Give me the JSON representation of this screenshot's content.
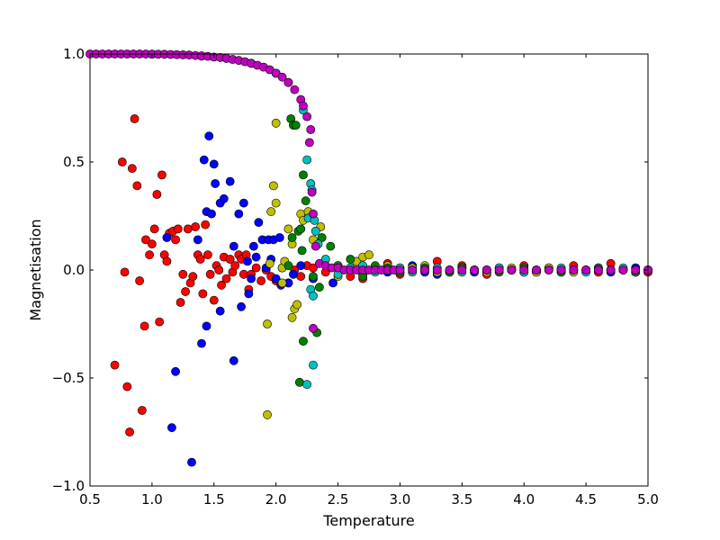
{
  "chart_data": {
    "type": "scatter",
    "title": "",
    "xlabel": "Temperature",
    "ylabel": "Magnetisation",
    "xlim": [
      0.5,
      5.0
    ],
    "ylim": [
      -1.0,
      1.0
    ],
    "xticks": [
      0.5,
      1.0,
      1.5,
      2.0,
      2.5,
      3.0,
      3.5,
      4.0,
      4.5,
      5.0
    ],
    "xtick_labels": [
      "0.5",
      "1.0",
      "1.5",
      "2.0",
      "2.5",
      "3.0",
      "3.5",
      "4.0",
      "4.5",
      "5.0"
    ],
    "yticks": [
      -1.0,
      -0.5,
      0.0,
      0.5,
      1.0
    ],
    "ytick_labels": [
      "−1.0",
      "−0.5",
      "0.0",
      "0.5",
      "1.0"
    ],
    "grid": false,
    "legend": null,
    "series": [
      {
        "name": "red",
        "color": "#ff0000",
        "x": [
          0.7,
          0.76,
          0.78,
          0.8,
          0.82,
          0.84,
          0.86,
          0.88,
          0.9,
          0.92,
          0.94,
          0.95,
          0.98,
          1.0,
          1.02,
          1.04,
          1.06,
          1.08,
          1.1,
          1.12,
          1.14,
          1.17,
          1.19,
          1.21,
          1.23,
          1.25,
          1.27,
          1.29,
          1.31,
          1.33,
          1.35,
          1.37,
          1.39,
          1.41,
          1.43,
          1.45,
          1.47,
          1.5,
          1.52,
          1.54,
          1.56,
          1.58,
          1.6,
          1.63,
          1.65,
          1.67,
          1.7,
          1.72,
          1.74,
          1.76,
          1.78,
          1.8,
          1.84,
          1.88,
          1.92,
          1.96,
          2.0,
          2.05,
          2.1,
          2.15,
          2.2,
          2.25,
          2.3,
          2.4,
          2.5,
          2.6,
          2.7,
          2.8,
          2.9,
          3.0,
          3.1,
          3.2,
          3.3,
          3.4,
          3.5,
          3.6,
          3.7,
          3.8,
          3.9,
          4.0,
          4.1,
          4.2,
          4.3,
          4.4,
          4.5,
          4.6,
          4.7,
          4.8,
          4.9,
          5.0
        ],
        "y": [
          -0.44,
          0.5,
          -0.01,
          -0.54,
          -0.75,
          0.47,
          0.7,
          0.39,
          -0.05,
          -0.65,
          -0.26,
          0.14,
          0.07,
          0.12,
          0.19,
          0.35,
          -0.24,
          0.44,
          0.07,
          0.04,
          0.17,
          0.18,
          0.14,
          0.19,
          -0.15,
          -0.02,
          -0.1,
          0.19,
          -0.06,
          -0.03,
          0.2,
          0.07,
          0.05,
          -0.11,
          0.21,
          0.07,
          -0.02,
          -0.14,
          0.02,
          0.0,
          -0.07,
          0.06,
          -0.04,
          0.05,
          -0.01,
          0.02,
          0.07,
          0.05,
          -0.02,
          0.07,
          -0.09,
          -0.02,
          0.01,
          -0.05,
          0.0,
          -0.03,
          -0.05,
          0.01,
          -0.06,
          0.0,
          -0.03,
          0.02,
          0.01,
          -0.01,
          0.02,
          -0.03,
          -0.04,
          0.01,
          0.03,
          -0.02,
          0.01,
          0.0,
          0.04,
          -0.01,
          0.02,
          0.0,
          -0.02,
          0.01,
          0.0,
          0.02,
          -0.01,
          0.01,
          0.0,
          0.02,
          0.0,
          -0.01,
          0.03,
          0.0,
          0.01,
          -0.01
        ]
      },
      {
        "name": "blue",
        "color": "#0000ff",
        "x": [
          1.12,
          1.16,
          1.19,
          1.32,
          1.37,
          1.4,
          1.42,
          1.44,
          1.44,
          1.46,
          1.48,
          1.5,
          1.51,
          1.55,
          1.55,
          1.58,
          1.63,
          1.66,
          1.66,
          1.7,
          1.72,
          1.74,
          1.77,
          1.78,
          1.8,
          1.82,
          1.84,
          1.86,
          1.89,
          1.92,
          1.94,
          1.96,
          1.98,
          2.0,
          2.03,
          2.04,
          2.1,
          2.14,
          2.2,
          2.3,
          2.46,
          2.6,
          2.7,
          2.8,
          2.9,
          3.0,
          3.1,
          3.2,
          3.3,
          3.4,
          3.5,
          3.6,
          3.7,
          3.8,
          3.9,
          4.0,
          4.1,
          4.2,
          4.3,
          4.4,
          4.5,
          4.6,
          4.7,
          4.8,
          4.9,
          5.0
        ],
        "y": [
          0.15,
          -0.73,
          -0.47,
          -0.89,
          0.14,
          -0.34,
          0.51,
          0.27,
          -0.26,
          0.62,
          0.26,
          0.49,
          0.4,
          0.31,
          -0.19,
          0.33,
          0.41,
          0.11,
          -0.42,
          0.26,
          -0.17,
          0.31,
          0.04,
          -0.11,
          -0.04,
          0.11,
          0.06,
          0.22,
          0.14,
          0.01,
          0.14,
          0.05,
          0.14,
          -0.04,
          0.15,
          -0.07,
          -0.06,
          -0.02,
          0.02,
          -0.04,
          -0.06,
          0.01,
          -0.02,
          0.0,
          -0.01,
          0.01,
          0.02,
          -0.01,
          -0.02,
          0.0,
          0.01,
          -0.01,
          0.0,
          0.01,
          0.0,
          -0.01,
          0.0,
          0.01,
          -0.01,
          0.0,
          0.0,
          0.01,
          -0.01,
          0.0,
          0.01,
          0.0
        ]
      },
      {
        "name": "yellow",
        "color": "#bfbf00",
        "x": [
          1.93,
          1.93,
          1.95,
          1.96,
          1.98,
          2.0,
          2.0,
          2.05,
          2.05,
          2.07,
          2.1,
          2.13,
          2.13,
          2.15,
          2.17,
          2.2,
          2.22,
          2.26,
          2.3,
          2.36,
          2.5,
          2.65,
          2.7,
          2.75,
          2.9,
          3.0,
          3.1,
          3.2,
          3.3,
          3.4,
          3.5,
          3.6,
          3.7,
          3.8,
          3.9,
          4.0,
          4.1,
          4.2,
          4.3,
          4.4,
          4.5,
          4.6,
          4.7,
          4.8,
          4.9,
          5.0
        ],
        "y": [
          -0.25,
          -0.67,
          0.03,
          0.27,
          0.39,
          0.68,
          0.31,
          0.01,
          -0.06,
          0.04,
          0.19,
          0.12,
          -0.22,
          -0.18,
          -0.16,
          0.26,
          0.23,
          0.27,
          0.14,
          0.2,
          -0.03,
          0.04,
          0.06,
          0.07,
          0.02,
          -0.01,
          0.01,
          0.02,
          -0.01,
          0.0,
          0.01,
          0.0,
          -0.01,
          0.0,
          0.01,
          0.0,
          -0.01,
          0.01,
          0.0,
          -0.01,
          0.0,
          0.01,
          0.0,
          0.0,
          -0.01,
          0.0
        ]
      },
      {
        "name": "green",
        "color": "#008000",
        "x": [
          2.1,
          2.12,
          2.13,
          2.14,
          2.16,
          2.18,
          2.19,
          2.2,
          2.21,
          2.22,
          2.22,
          2.24,
          2.3,
          2.33,
          2.35,
          2.37,
          2.44,
          2.5,
          2.6,
          2.7,
          2.8,
          2.9,
          3.0,
          3.1,
          3.2,
          3.3,
          3.4,
          3.5,
          3.6,
          3.7,
          3.8,
          3.9,
          4.0,
          4.1,
          4.2,
          4.3,
          4.4,
          4.5,
          4.6,
          4.7,
          4.8,
          4.9,
          5.0
        ],
        "y": [
          0.02,
          0.7,
          0.15,
          0.67,
          0.67,
          0.18,
          -0.52,
          0.19,
          0.09,
          0.44,
          -0.33,
          0.32,
          -0.03,
          -0.29,
          -0.08,
          0.15,
          0.11,
          0.02,
          0.05,
          -0.03,
          0.02,
          0.01,
          -0.01,
          0.0,
          0.01,
          0.0,
          -0.01,
          0.01,
          0.0,
          0.0,
          -0.01,
          0.0,
          0.01,
          0.0,
          0.0,
          -0.01,
          0.0,
          0.0,
          0.01,
          0.0,
          0.0,
          -0.01,
          0.0
        ]
      },
      {
        "name": "cyan",
        "color": "#00bfbf",
        "x": [
          1.0,
          1.2,
          1.4,
          1.6,
          1.8,
          2.0,
          2.1,
          2.22,
          2.25,
          2.25,
          2.26,
          2.28,
          2.28,
          2.29,
          2.3,
          2.3,
          2.31,
          2.32,
          2.34,
          2.4,
          2.5,
          2.6,
          2.7,
          2.8,
          2.9,
          3.0,
          3.1,
          3.2,
          3.3,
          3.4,
          3.5,
          3.6,
          3.7,
          3.8,
          3.9,
          4.0,
          4.1,
          4.2,
          4.3,
          4.4,
          4.5,
          4.6,
          4.7,
          4.8,
          4.9,
          5.0
        ],
        "y": [
          0.999,
          0.997,
          0.99,
          0.98,
          0.957,
          0.911,
          0.868,
          0.74,
          0.51,
          -0.53,
          0.24,
          0.4,
          -0.09,
          0.37,
          -0.12,
          -0.44,
          0.23,
          0.18,
          0.12,
          0.05,
          -0.02,
          0.01,
          0.02,
          -0.01,
          0.0,
          0.01,
          -0.01,
          0.0,
          0.01,
          0.0,
          -0.01,
          0.0,
          0.0,
          0.01,
          0.0,
          -0.01,
          0.0,
          0.0,
          0.01,
          0.0,
          -0.01,
          0.0,
          0.0,
          0.01,
          0.0,
          0.0
        ]
      },
      {
        "name": "magenta",
        "color": "#bf00bf",
        "x": [
          0.5,
          0.55,
          0.6,
          0.65,
          0.7,
          0.75,
          0.8,
          0.85,
          0.9,
          0.95,
          1.0,
          1.05,
          1.1,
          1.15,
          1.2,
          1.25,
          1.3,
          1.35,
          1.4,
          1.45,
          1.5,
          1.55,
          1.6,
          1.65,
          1.7,
          1.75,
          1.8,
          1.85,
          1.9,
          1.95,
          2.0,
          2.05,
          2.1,
          2.15,
          2.2,
          2.22,
          2.25,
          2.27,
          2.28,
          2.29,
          2.3,
          2.3,
          2.32,
          2.35,
          2.4,
          2.45,
          2.5,
          2.55,
          2.6,
          2.65,
          2.7,
          2.75,
          2.8,
          2.85,
          2.9,
          2.95,
          3.0,
          3.1,
          3.2,
          3.3,
          3.4,
          3.5,
          3.6,
          3.7,
          3.8,
          3.9,
          4.0,
          4.1,
          4.2,
          4.3,
          4.4,
          4.5,
          4.6,
          4.7,
          4.8,
          4.9,
          5.0
        ],
        "y": [
          1.0,
          1.0,
          1.0,
          1.0,
          1.0,
          1.0,
          1.0,
          1.0,
          1.0,
          0.9998,
          0.9993,
          0.999,
          0.9987,
          0.998,
          0.997,
          0.996,
          0.995,
          0.993,
          0.9915,
          0.989,
          0.986,
          0.984,
          0.98,
          0.975,
          0.97,
          0.964,
          0.957,
          0.948,
          0.939,
          0.927,
          0.911,
          0.893,
          0.868,
          0.835,
          0.789,
          0.76,
          0.71,
          0.59,
          0.65,
          0.36,
          0.26,
          -0.27,
          0.11,
          0.03,
          0.02,
          0.01,
          0.01,
          0.0,
          0.0,
          0.0,
          0.0,
          0.0,
          0.0,
          0.0,
          0.0,
          0.0,
          0.0,
          0.0,
          0.0,
          0.0,
          0.0,
          0.0,
          0.0,
          0.0,
          0.0,
          0.0,
          0.0,
          0.0,
          0.0,
          0.0,
          0.0,
          0.0,
          0.0,
          0.0,
          0.0,
          0.0,
          0.0
        ]
      }
    ]
  }
}
